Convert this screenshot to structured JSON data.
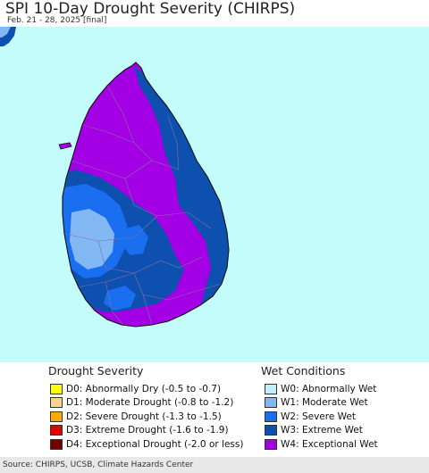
{
  "header": {
    "title": "SPI 10-Day Drought Severity (CHIRPS)",
    "subtitle": "Feb. 21 - 28, 2025 [final]"
  },
  "colors": {
    "sea": "#c4fcfc",
    "land_outline": "#111111",
    "district_lines": "#8a6f9a",
    "W0": "#bfeeff",
    "W1": "#82b9f5",
    "W2": "#1a6ef0",
    "W3": "#0e50b0",
    "W4": "#a400e6"
  },
  "legend": {
    "drought": {
      "heading": "Drought Severity",
      "items": [
        {
          "label": "D0: Abnormally Dry (-0.5 to -0.7)",
          "color": "#ffff00"
        },
        {
          "label": "D1: Moderate Drought (-0.8 to -1.2)",
          "color": "#fcd38e"
        },
        {
          "label": "D2: Severe Drought (-1.3 to -1.5)",
          "color": "#ffaa00"
        },
        {
          "label": "D3: Extreme Drought (-1.6 to -1.9)",
          "color": "#e60000"
        },
        {
          "label": "D4: Exceptional Drought (-2.0 or less)",
          "color": "#730000"
        }
      ]
    },
    "wet": {
      "heading": "Wet Conditions",
      "items": [
        {
          "label": "W0: Abnormally Wet",
          "color": "#bfeeff"
        },
        {
          "label": "W1: Moderate Wet",
          "color": "#82b9f5"
        },
        {
          "label": "W2: Severe Wet",
          "color": "#1a6ef0"
        },
        {
          "label": "W3: Extreme Wet",
          "color": "#0e50b0"
        },
        {
          "label": "W4: Exceptional Wet",
          "color": "#a400e6"
        }
      ]
    }
  },
  "footer": {
    "source": "Source: CHIRPS, UCSB, Climate Hazards Center"
  }
}
